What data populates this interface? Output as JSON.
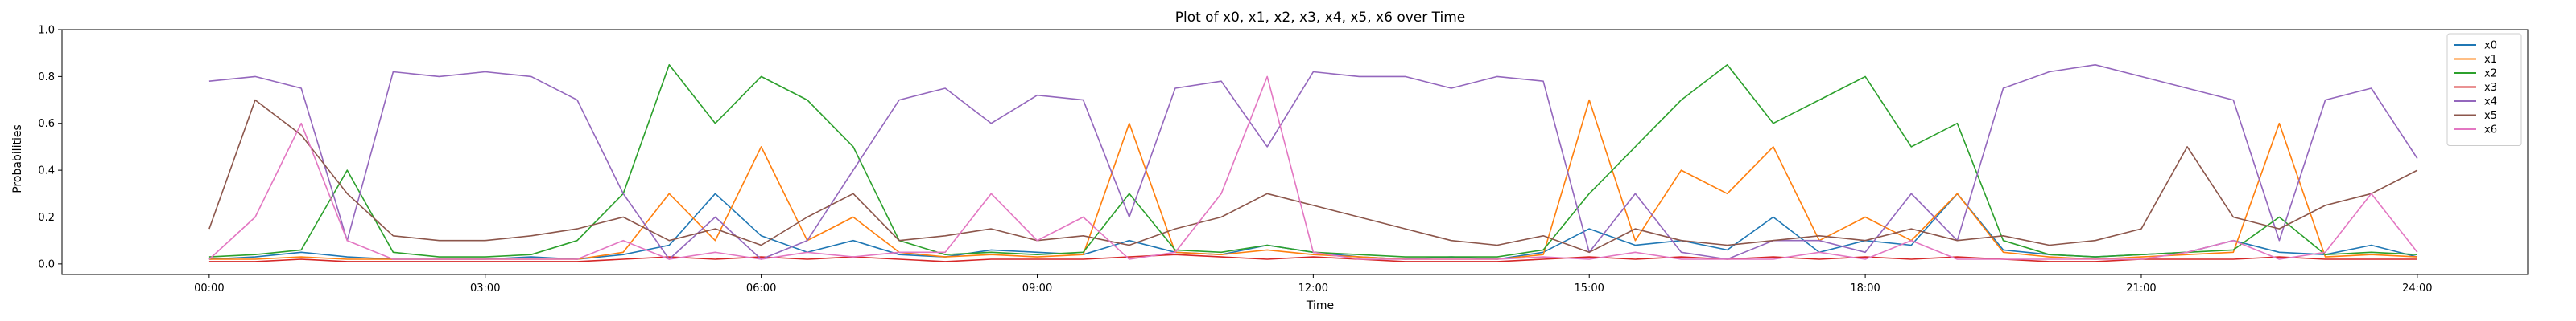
{
  "chart_data": {
    "type": "line",
    "title": "Plot of x0, x1, x2, x3, x4, x5, x6 over Time",
    "xlabel": "Time",
    "ylabel": "Probabilities",
    "x_unit": "hours",
    "xlim": [
      -1.6,
      25.2
    ],
    "ylim": [
      -0.045,
      1.0
    ],
    "x_ticks": [
      0,
      3,
      6,
      9,
      12,
      15,
      18,
      21,
      24
    ],
    "x_tick_labels": [
      "00:00",
      "03:00",
      "06:00",
      "09:00",
      "12:00",
      "15:00",
      "18:00",
      "21:00",
      "24:00"
    ],
    "y_ticks": [
      0.0,
      0.2,
      0.4,
      0.6,
      0.8,
      1.0
    ],
    "y_tick_labels": [
      "0.0",
      "0.2",
      "0.4",
      "0.6",
      "0.8",
      "1.0"
    ],
    "grid": false,
    "legend_position": "top-right",
    "x": [
      0,
      0.5,
      1,
      1.5,
      2,
      2.5,
      3,
      3.5,
      4,
      4.5,
      5,
      5.5,
      6,
      6.5,
      7,
      7.5,
      8,
      8.5,
      9,
      9.5,
      10,
      10.5,
      11,
      11.5,
      12,
      12.5,
      13,
      13.5,
      14,
      14.5,
      15,
      15.5,
      16,
      16.5,
      17,
      17.5,
      18,
      18.5,
      19,
      19.5,
      20,
      20.5,
      21,
      21.5,
      22,
      22.5,
      23,
      23.5,
      24
    ],
    "series": [
      {
        "name": "x0",
        "color": "#1f77b4",
        "values": [
          0.02,
          0.03,
          0.05,
          0.03,
          0.02,
          0.02,
          0.02,
          0.03,
          0.02,
          0.04,
          0.08,
          0.3,
          0.12,
          0.05,
          0.1,
          0.04,
          0.03,
          0.06,
          0.05,
          0.04,
          0.1,
          0.05,
          0.04,
          0.08,
          0.05,
          0.03,
          0.02,
          0.03,
          0.02,
          0.05,
          0.15,
          0.08,
          0.1,
          0.06,
          0.2,
          0.05,
          0.1,
          0.08,
          0.3,
          0.06,
          0.04,
          0.03,
          0.04,
          0.05,
          0.1,
          0.05,
          0.04,
          0.08,
          0.03
        ]
      },
      {
        "name": "x1",
        "color": "#ff7f0e",
        "values": [
          0.02,
          0.02,
          0.03,
          0.02,
          0.02,
          0.02,
          0.02,
          0.02,
          0.02,
          0.05,
          0.3,
          0.1,
          0.5,
          0.1,
          0.2,
          0.05,
          0.03,
          0.04,
          0.03,
          0.04,
          0.6,
          0.05,
          0.04,
          0.06,
          0.04,
          0.03,
          0.02,
          0.02,
          0.02,
          0.04,
          0.7,
          0.1,
          0.4,
          0.3,
          0.5,
          0.1,
          0.2,
          0.1,
          0.3,
          0.05,
          0.03,
          0.02,
          0.03,
          0.04,
          0.05,
          0.6,
          0.03,
          0.04,
          0.03
        ]
      },
      {
        "name": "x2",
        "color": "#2ca02c",
        "values": [
          0.03,
          0.04,
          0.06,
          0.4,
          0.05,
          0.03,
          0.03,
          0.04,
          0.1,
          0.3,
          0.85,
          0.6,
          0.8,
          0.7,
          0.5,
          0.1,
          0.04,
          0.05,
          0.04,
          0.05,
          0.3,
          0.06,
          0.05,
          0.08,
          0.05,
          0.04,
          0.03,
          0.03,
          0.03,
          0.06,
          0.3,
          0.5,
          0.7,
          0.85,
          0.6,
          0.7,
          0.8,
          0.5,
          0.6,
          0.1,
          0.04,
          0.03,
          0.04,
          0.05,
          0.06,
          0.2,
          0.04,
          0.05,
          0.04
        ]
      },
      {
        "name": "x3",
        "color": "#d62728",
        "values": [
          0.01,
          0.01,
          0.02,
          0.01,
          0.01,
          0.01,
          0.01,
          0.01,
          0.01,
          0.02,
          0.03,
          0.02,
          0.03,
          0.02,
          0.03,
          0.02,
          0.01,
          0.02,
          0.02,
          0.02,
          0.03,
          0.04,
          0.03,
          0.02,
          0.03,
          0.02,
          0.01,
          0.01,
          0.01,
          0.02,
          0.03,
          0.02,
          0.03,
          0.02,
          0.03,
          0.02,
          0.03,
          0.02,
          0.03,
          0.02,
          0.01,
          0.01,
          0.02,
          0.02,
          0.02,
          0.03,
          0.02,
          0.02,
          0.02
        ]
      },
      {
        "name": "x4",
        "color": "#9467bd",
        "values": [
          0.78,
          0.8,
          0.75,
          0.1,
          0.82,
          0.8,
          0.82,
          0.8,
          0.7,
          0.3,
          0.02,
          0.2,
          0.02,
          0.1,
          0.4,
          0.7,
          0.75,
          0.6,
          0.72,
          0.7,
          0.2,
          0.75,
          0.78,
          0.5,
          0.82,
          0.8,
          0.8,
          0.75,
          0.8,
          0.78,
          0.05,
          0.3,
          0.05,
          0.02,
          0.1,
          0.1,
          0.05,
          0.3,
          0.1,
          0.75,
          0.82,
          0.85,
          0.8,
          0.75,
          0.7,
          0.1,
          0.7,
          0.75,
          0.45
        ]
      },
      {
        "name": "x5",
        "color": "#8c564b",
        "values": [
          0.15,
          0.7,
          0.55,
          0.3,
          0.12,
          0.1,
          0.1,
          0.12,
          0.15,
          0.2,
          0.1,
          0.15,
          0.08,
          0.2,
          0.3,
          0.1,
          0.12,
          0.15,
          0.1,
          0.12,
          0.08,
          0.15,
          0.2,
          0.3,
          0.25,
          0.2,
          0.15,
          0.1,
          0.08,
          0.12,
          0.05,
          0.15,
          0.1,
          0.08,
          0.1,
          0.12,
          0.1,
          0.15,
          0.1,
          0.12,
          0.08,
          0.1,
          0.15,
          0.5,
          0.2,
          0.15,
          0.25,
          0.3,
          0.4
        ]
      },
      {
        "name": "x6",
        "color": "#e377c2",
        "values": [
          0.02,
          0.2,
          0.6,
          0.1,
          0.02,
          0.02,
          0.02,
          0.02,
          0.02,
          0.1,
          0.02,
          0.05,
          0.02,
          0.05,
          0.03,
          0.05,
          0.05,
          0.3,
          0.1,
          0.2,
          0.02,
          0.05,
          0.3,
          0.8,
          0.05,
          0.02,
          0.02,
          0.02,
          0.02,
          0.03,
          0.02,
          0.05,
          0.02,
          0.02,
          0.02,
          0.05,
          0.02,
          0.1,
          0.02,
          0.02,
          0.02,
          0.02,
          0.02,
          0.05,
          0.1,
          0.02,
          0.05,
          0.3,
          0.05
        ]
      }
    ]
  }
}
